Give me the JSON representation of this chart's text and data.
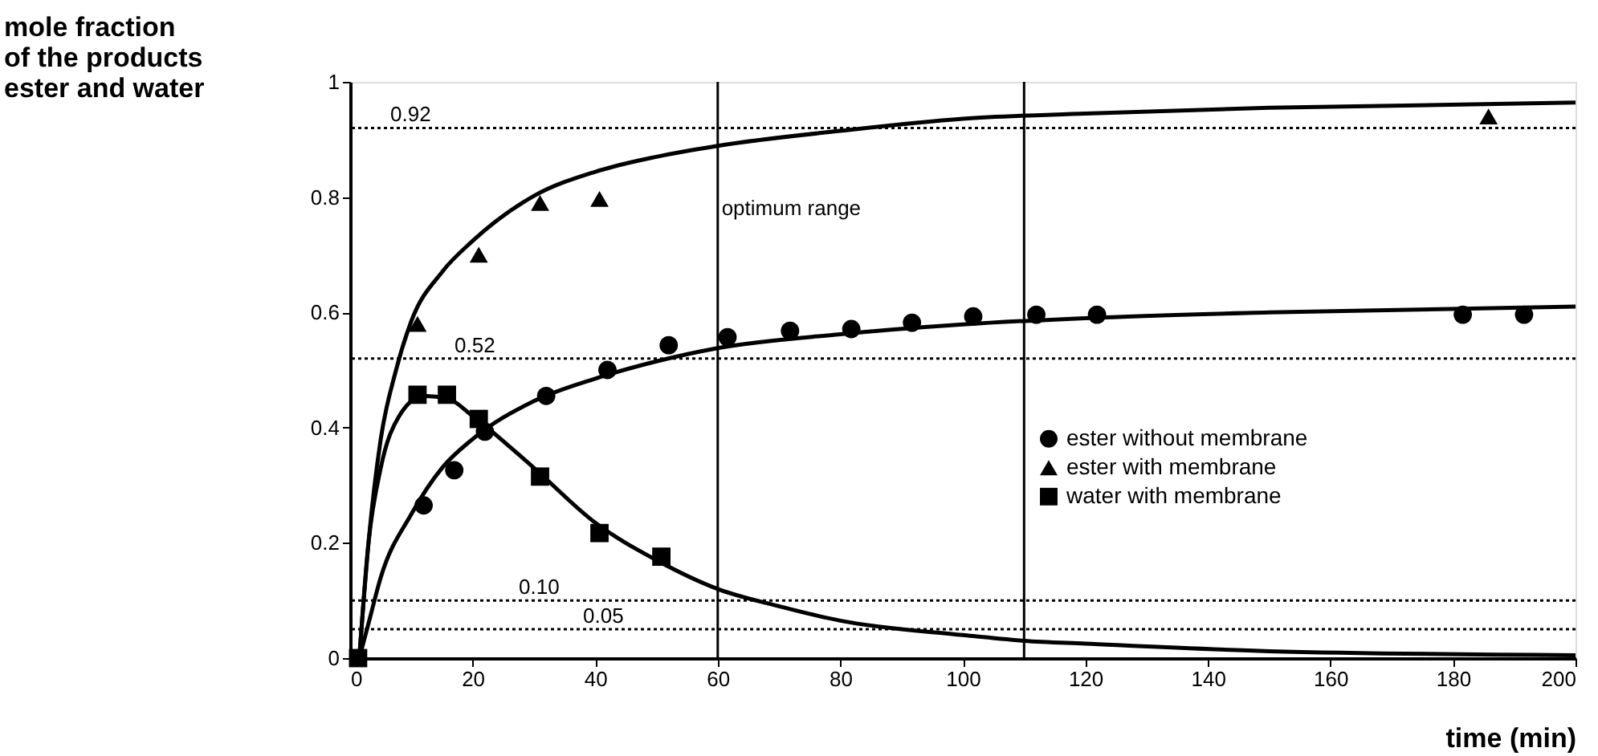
{
  "chart_data": {
    "type": "scatter",
    "xlabel": "time (min)",
    "ylabel": "mole fraction\nof the products\nester and  water",
    "xlim": [
      0,
      200
    ],
    "xticks": [
      0,
      20,
      40,
      60,
      80,
      100,
      120,
      140,
      160,
      180,
      200
    ],
    "ylim": [
      0,
      1
    ],
    "yticks": [
      0,
      0.2,
      0.4,
      0.6,
      0.8,
      1
    ],
    "grid": false,
    "legend": "right",
    "series": [
      {
        "name": "ester without membrane",
        "color": "#000000",
        "marker": "circle",
        "x": [
          12,
          17,
          22,
          32,
          42,
          52,
          61.6,
          71.8,
          81.8,
          91.7,
          101.7,
          112,
          121.9,
          181.6,
          191.6
        ],
        "values": [
          0.265,
          0.326,
          0.393,
          0.455,
          0.5,
          0.543,
          0.557,
          0.568,
          0.571,
          0.582,
          0.593,
          0.596,
          0.596,
          0.596,
          0.596
        ]
      },
      {
        "name": "ester with membrane",
        "color": "#000000",
        "marker": "triangle",
        "x": [
          11,
          21,
          31,
          40.7,
          185.8
        ],
        "values": [
          0.58,
          0.7,
          0.79,
          0.797,
          0.94
        ]
      },
      {
        "name": "water with membrane",
        "color": "#000000",
        "marker": "square",
        "x": [
          1.3,
          11,
          15.8,
          21,
          31,
          40.7,
          50.8
        ],
        "values": [
          0,
          0.457,
          0.457,
          0.415,
          0.315,
          0.217,
          0.176
        ]
      },
      {
        "type": "line",
        "color": "#000000",
        "line_style": "solid",
        "x": [
          1.5,
          3,
          5,
          7.5,
          10,
          15,
          20,
          30,
          40,
          50,
          60,
          80,
          100,
          120,
          150,
          200
        ],
        "values": [
          0,
          0.2,
          0.38,
          0.5,
          0.585,
          0.67,
          0.724,
          0.802,
          0.844,
          0.87,
          0.889,
          0.915,
          0.936,
          0.945,
          0.955,
          0.964
        ]
      },
      {
        "type": "line",
        "color": "#000000",
        "line_style": "solid",
        "x": [
          1.5,
          3,
          5,
          10,
          15,
          20,
          30,
          40,
          50,
          60,
          80,
          100,
          120,
          150,
          200
        ],
        "values": [
          0,
          0.06,
          0.14,
          0.25,
          0.33,
          0.38,
          0.446,
          0.485,
          0.515,
          0.538,
          0.562,
          0.579,
          0.59,
          0.6,
          0.61
        ]
      },
      {
        "type": "line",
        "color": "#000000",
        "line_style": "solid",
        "x": [
          1.5,
          3,
          5,
          8,
          12,
          16,
          20,
          30,
          40,
          50,
          60,
          70,
          80,
          100,
          110,
          120,
          150,
          200
        ],
        "values": [
          0,
          0.2,
          0.33,
          0.42,
          0.455,
          0.45,
          0.42,
          0.33,
          0.235,
          0.17,
          0.12,
          0.09,
          0.065,
          0.04,
          0.03,
          0.025,
          0.012,
          0.005
        ]
      }
    ],
    "ref_lines": [
      {
        "axis": "y",
        "value": 0.92,
        "label": "0.92",
        "line_style": "dotted"
      },
      {
        "axis": "y",
        "value": 0.52,
        "label": "0.52",
        "line_style": "dotted"
      },
      {
        "axis": "y",
        "value": 0.1,
        "label": "0.10",
        "line_style": "dotted"
      },
      {
        "axis": "y",
        "value": 0.05,
        "label": "0.05",
        "line_style": "dotted"
      },
      {
        "axis": "x",
        "value": 60,
        "line_style": "solid"
      },
      {
        "axis": "x",
        "value": 110,
        "line_style": "solid"
      }
    ],
    "annotations": [
      "optimum range"
    ]
  }
}
